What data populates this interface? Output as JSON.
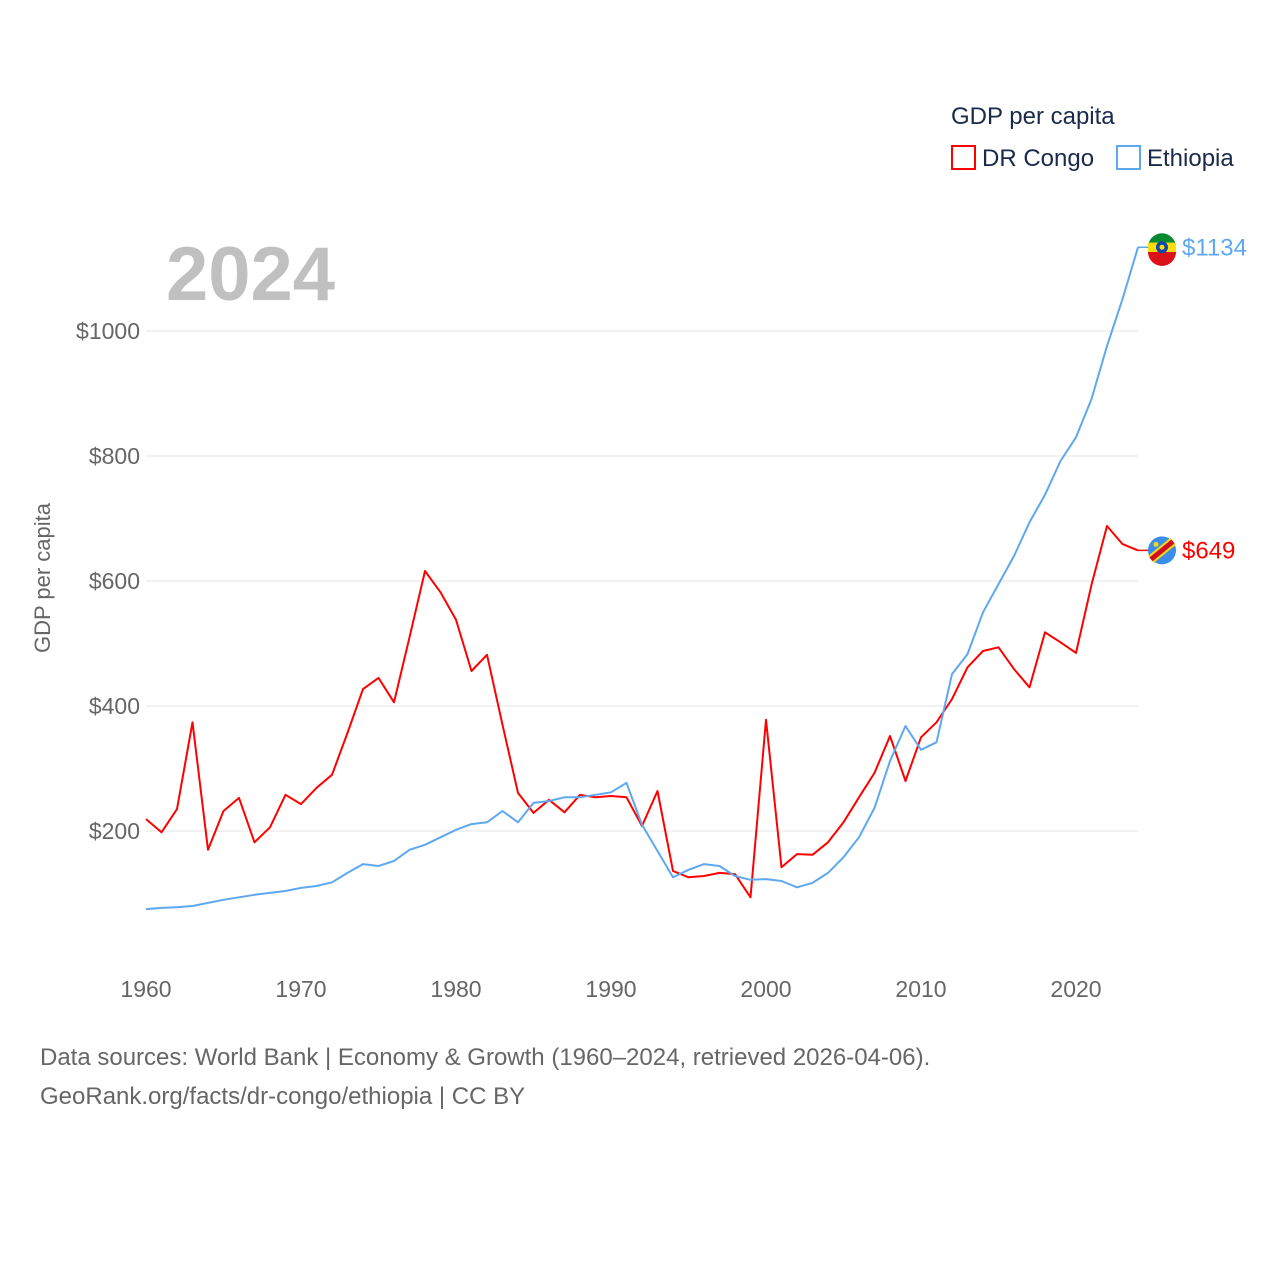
{
  "chart_data": {
    "type": "line",
    "title": "GDP per capita",
    "current_year_label": "2024",
    "xlabel": "",
    "ylabel": "GDP per capita",
    "xlim": [
      1960,
      2024
    ],
    "ylim": [
      0,
      1150
    ],
    "y_ticks": [
      200,
      400,
      600,
      800,
      1000
    ],
    "y_tick_labels": [
      "$200",
      "$400",
      "$600",
      "$800",
      "$1000"
    ],
    "x_ticks": [
      1960,
      1970,
      1980,
      1990,
      2000,
      2010,
      2020
    ],
    "x_tick_labels": [
      "1960",
      "1970",
      "1980",
      "1990",
      "2000",
      "2010",
      "2020"
    ],
    "grid": true,
    "legend_position": "top-right",
    "series": [
      {
        "name": "DR Congo",
        "color": "#ff0000",
        "end_label": "$649",
        "flag": "dr-congo-flag",
        "start_year": 1960,
        "values": [
          219,
          198,
          235,
          374,
          170,
          232,
          253,
          182,
          206,
          258,
          243,
          269,
          290,
          357,
          427,
          445,
          406,
          510,
          616,
          582,
          538,
          456,
          482,
          370,
          261,
          229,
          250,
          230,
          258,
          254,
          256,
          254,
          208,
          264,
          136,
          126,
          128,
          133,
          131,
          94,
          378,
          142,
          163,
          162,
          182,
          214,
          254,
          293,
          352,
          280,
          350,
          374,
          411,
          462,
          488,
          494,
          459,
          430,
          518,
          502,
          485,
          594,
          688,
          659,
          649
        ]
      },
      {
        "name": "Ethiopia",
        "color": "#5ea8f0",
        "end_label": "$1134",
        "flag": "ethiopia-flag",
        "start_year": 1960,
        "values": [
          75,
          77,
          78,
          80,
          85,
          90,
          94,
          98,
          101,
          104,
          109,
          112,
          118,
          133,
          147,
          144,
          152,
          170,
          178,
          190,
          202,
          211,
          214,
          232,
          214,
          245,
          248,
          254,
          254,
          258,
          262,
          277,
          210,
          168,
          126,
          138,
          147,
          144,
          128,
          122,
          123,
          120,
          110,
          117,
          133,
          158,
          190,
          237,
          312,
          368,
          330,
          342,
          451,
          483,
          550,
          595,
          640,
          694,
          738,
          792,
          830,
          891,
          976,
          1051,
          1134
        ]
      }
    ]
  },
  "footer": {
    "line1": "Data sources: World Bank | Economy & Growth (1960–2024, retrieved 2026-04-06).",
    "line2": "GeoRank.org/facts/dr-congo/ethiopia | CC BY"
  }
}
